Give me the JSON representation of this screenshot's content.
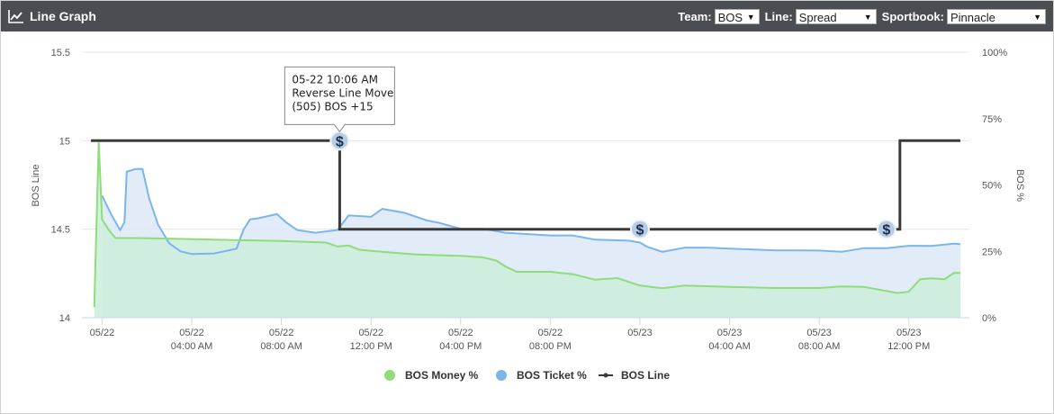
{
  "header": {
    "title": "Line Graph",
    "icon": "line-chart-icon",
    "team_label": "Team:",
    "team_value": "BOS",
    "line_label": "Line:",
    "line_value": "Spread",
    "sportbook_label": "Sportbook:",
    "sportbook_value": "Pinnacle"
  },
  "colors": {
    "header_bg": "#4a4d52",
    "money": "#8fdc7a",
    "money_fill": "#cdeedd",
    "ticket": "#7cb5ec",
    "ticket_fill": "#dde9f7",
    "line": "#3a3a3a",
    "marker": "#b7cce6"
  },
  "chart_data": {
    "type": "line",
    "x_ticks": [
      {
        "t": 0,
        "label": [
          "05/22"
        ]
      },
      {
        "t": 4,
        "label": [
          "05/22",
          "04:00 AM"
        ]
      },
      {
        "t": 8,
        "label": [
          "05/22",
          "08:00 AM"
        ]
      },
      {
        "t": 12,
        "label": [
          "05/22",
          "12:00 PM"
        ]
      },
      {
        "t": 16,
        "label": [
          "05/22",
          "04:00 PM"
        ]
      },
      {
        "t": 20,
        "label": [
          "05/22",
          "08:00 PM"
        ]
      },
      {
        "t": 24,
        "label": [
          "05/23"
        ]
      },
      {
        "t": 28,
        "label": [
          "05/23",
          "04:00 AM"
        ]
      },
      {
        "t": 32,
        "label": [
          "05/23",
          "08:00 AM"
        ]
      },
      {
        "t": 36,
        "label": [
          "05/23",
          "12:00 PM"
        ]
      }
    ],
    "x_range": [
      -0.5,
      38.3
    ],
    "y_left": {
      "title": "BOS Line",
      "range": [
        14,
        15.5
      ],
      "ticks": [
        "14",
        "14.5",
        "15",
        "15.5"
      ]
    },
    "y_right": {
      "title": "BOS %",
      "range": [
        0,
        100
      ],
      "ticks": [
        "0%",
        "25%",
        "50%",
        "75%",
        "100%"
      ]
    },
    "grid": true,
    "legend_position": "bottom-center",
    "series": [
      {
        "name": "BOS Money %",
        "axis": "right",
        "points": [
          [
            -0.35,
            4
          ],
          [
            -0.15,
            66
          ],
          [
            0,
            37
          ],
          [
            0.3,
            33
          ],
          [
            0.6,
            30
          ],
          [
            1.5,
            30
          ],
          [
            3,
            29.8
          ],
          [
            5,
            29.4
          ],
          [
            7,
            29.1
          ],
          [
            8,
            28.9
          ],
          [
            9,
            28.6
          ],
          [
            10,
            28.3
          ],
          [
            10.5,
            26.8
          ],
          [
            11,
            27.2
          ],
          [
            11.5,
            25.6
          ],
          [
            12,
            25.2
          ],
          [
            14,
            23.8
          ],
          [
            16,
            23.3
          ],
          [
            17,
            22.7
          ],
          [
            17.6,
            21.5
          ],
          [
            18,
            19.3
          ],
          [
            18.5,
            17.3
          ],
          [
            20,
            17.3
          ],
          [
            21,
            16.4
          ],
          [
            22,
            14.3
          ],
          [
            23,
            14.9
          ],
          [
            24,
            12.1
          ],
          [
            25,
            11.1
          ],
          [
            26,
            12.1
          ],
          [
            28,
            11.6
          ],
          [
            30,
            11.2
          ],
          [
            32,
            11.2
          ],
          [
            33,
            11.8
          ],
          [
            34,
            11.6
          ],
          [
            35.5,
            9.3
          ],
          [
            36,
            9.8
          ],
          [
            36.5,
            14.5
          ],
          [
            37,
            14.8
          ],
          [
            37.6,
            14.5
          ],
          [
            38,
            16.8
          ],
          [
            38.3,
            16.9
          ]
        ]
      },
      {
        "name": "BOS Ticket %",
        "axis": "right",
        "points": [
          [
            0,
            46
          ],
          [
            0.4,
            39
          ],
          [
            0.8,
            33
          ],
          [
            1,
            36
          ],
          [
            1.1,
            55
          ],
          [
            1.5,
            56
          ],
          [
            1.8,
            56
          ],
          [
            2.1,
            45
          ],
          [
            2.5,
            35
          ],
          [
            3,
            28
          ],
          [
            3.5,
            25
          ],
          [
            4,
            24
          ],
          [
            5,
            24.2
          ],
          [
            6,
            26
          ],
          [
            6.3,
            33
          ],
          [
            6.6,
            37
          ],
          [
            7,
            37.5
          ],
          [
            7.8,
            39
          ],
          [
            8.2,
            36
          ],
          [
            8.7,
            33
          ],
          [
            9.5,
            32
          ],
          [
            10.5,
            33
          ],
          [
            11,
            38.5
          ],
          [
            12,
            38
          ],
          [
            12.5,
            41
          ],
          [
            13.5,
            39.5
          ],
          [
            14.5,
            36.6
          ],
          [
            15,
            35.8
          ],
          [
            16,
            33.5
          ],
          [
            17,
            33.5
          ],
          [
            18,
            32
          ],
          [
            20,
            31
          ],
          [
            21,
            31
          ],
          [
            22,
            29.4
          ],
          [
            23.5,
            29
          ],
          [
            24,
            28.3
          ],
          [
            24.3,
            26.8
          ],
          [
            25,
            24.8
          ],
          [
            26,
            26.4
          ],
          [
            27,
            26.4
          ],
          [
            28,
            26
          ],
          [
            30,
            25.4
          ],
          [
            32,
            25.3
          ],
          [
            33,
            24.8
          ],
          [
            34,
            26.2
          ],
          [
            35,
            26.2
          ],
          [
            36,
            27.1
          ],
          [
            37,
            27
          ],
          [
            38,
            27.9
          ],
          [
            38.3,
            27.7
          ]
        ]
      },
      {
        "name": "BOS Line",
        "axis": "left",
        "step": true,
        "points": [
          [
            -0.5,
            15
          ],
          [
            10.6,
            15
          ],
          [
            10.6,
            14.5
          ],
          [
            35.6,
            14.5
          ],
          [
            35.6,
            15
          ],
          [
            38.3,
            15
          ]
        ]
      }
    ],
    "markers": [
      {
        "t": 10.6,
        "value": 15,
        "symbol": "$"
      },
      {
        "t": 24,
        "value": 14.5,
        "symbol": "$"
      },
      {
        "t": 35,
        "value": 14.5,
        "symbol": "$"
      }
    ],
    "tooltip": {
      "anchor_marker": 0,
      "lines": [
        "05-22 10:06 AM",
        "Reverse Line Move",
        "(505) BOS +15"
      ]
    }
  }
}
